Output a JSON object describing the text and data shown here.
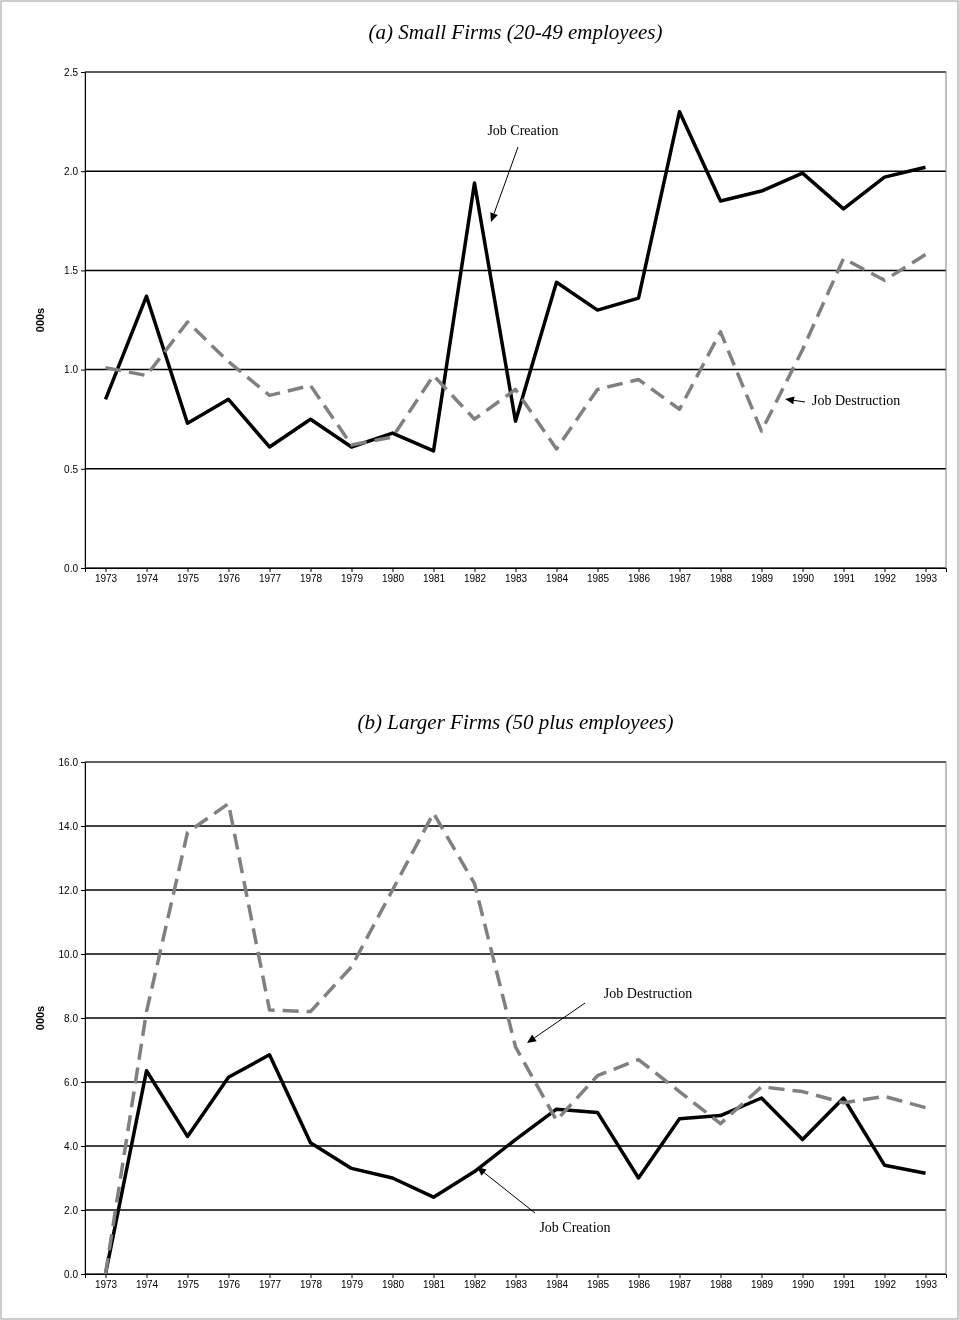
{
  "chart_data": [
    {
      "type": "line",
      "title": "(a) Small Firms (20-49 employees)",
      "ylabel": "000s",
      "x": [
        1973,
        1974,
        1975,
        1976,
        1977,
        1978,
        1979,
        1980,
        1981,
        1982,
        1983,
        1984,
        1985,
        1986,
        1987,
        1988,
        1989,
        1990,
        1991,
        1992,
        1993
      ],
      "xlim": [
        1972.5,
        1993.5
      ],
      "xticks": [
        1973,
        1974,
        1975,
        1976,
        1977,
        1978,
        1979,
        1980,
        1981,
        1982,
        1983,
        1984,
        1985,
        1986,
        1987,
        1988,
        1989,
        1990,
        1991,
        1992,
        1993
      ],
      "ylim": [
        0,
        2.5
      ],
      "yticks": [
        {
          "value": 0,
          "label": "0.0"
        },
        {
          "value": 0.5,
          "label": "0.5"
        },
        {
          "value": 1,
          "label": "1.0"
        },
        {
          "value": 1.5,
          "label": "1.5"
        },
        {
          "value": 2,
          "label": "2.0"
        },
        {
          "value": 2.5,
          "label": "2.5"
        }
      ],
      "grid": "y",
      "marker": "none",
      "series": [
        {
          "color": "#000000",
          "line_style": "solid",
          "values": [
            0.85,
            1.37,
            0.73,
            0.85,
            0.61,
            0.75,
            0.61,
            0.68,
            0.59,
            1.94,
            0.74,
            1.44,
            1.3,
            1.36,
            2.3,
            1.85,
            1.9,
            1.99,
            1.81,
            1.97,
            2.02
          ]
        },
        {
          "color": "#808080",
          "line_style": "dashed",
          "values": [
            1.01,
            0.97,
            1.24,
            1.04,
            0.87,
            0.92,
            0.62,
            0.66,
            0.97,
            0.75,
            0.9,
            0.6,
            0.9,
            0.95,
            0.8,
            1.19,
            0.69,
            1.1,
            1.56,
            1.45,
            1.58
          ]
        }
      ],
      "annotations": [
        "Job Creation",
        "Job Destruction"
      ]
    },
    {
      "type": "line",
      "title": "(b) Larger Firms (50 plus employees)",
      "ylabel": "000s",
      "x": [
        1973,
        1974,
        1975,
        1976,
        1977,
        1978,
        1979,
        1980,
        1981,
        1982,
        1983,
        1984,
        1985,
        1986,
        1987,
        1988,
        1989,
        1990,
        1991,
        1992,
        1993
      ],
      "xlim": [
        1972.5,
        1993.5
      ],
      "xticks": [
        1973,
        1974,
        1975,
        1976,
        1977,
        1978,
        1979,
        1980,
        1981,
        1982,
        1983,
        1984,
        1985,
        1986,
        1987,
        1988,
        1989,
        1990,
        1991,
        1992,
        1993
      ],
      "ylim": [
        0,
        16
      ],
      "yticks": [
        {
          "value": 0,
          "label": "0.0"
        },
        {
          "value": 2,
          "label": "2.0"
        },
        {
          "value": 4,
          "label": "4.0"
        },
        {
          "value": 6,
          "label": "6.0"
        },
        {
          "value": 8,
          "label": "8.0"
        },
        {
          "value": 10,
          "label": "10.0"
        },
        {
          "value": 12,
          "label": "12.0"
        },
        {
          "value": 14,
          "label": "14.0"
        },
        {
          "value": 16,
          "label": "16.0"
        }
      ],
      "grid": "y",
      "marker": "none",
      "series": [
        {
          "color": "#000000",
          "line_style": "solid",
          "values": [
            0,
            6.35,
            4.3,
            6.15,
            6.85,
            4.1,
            3.3,
            3.0,
            2.4,
            3.2,
            4.2,
            5.15,
            5.05,
            3.0,
            4.85,
            4.95,
            5.5,
            4.2,
            5.5,
            3.4,
            3.15
          ]
        },
        {
          "color": "#808080",
          "line_style": "dashed",
          "values": [
            0,
            8.2,
            13.8,
            14.7,
            8.25,
            8.2,
            9.6,
            12.0,
            14.4,
            12.2,
            7.1,
            4.8,
            6.2,
            6.7,
            5.7,
            4.7,
            5.85,
            5.7,
            5.35,
            5.55,
            5.2
          ]
        }
      ],
      "annotations": [
        "Job Destruction",
        "Job Creation"
      ]
    }
  ]
}
